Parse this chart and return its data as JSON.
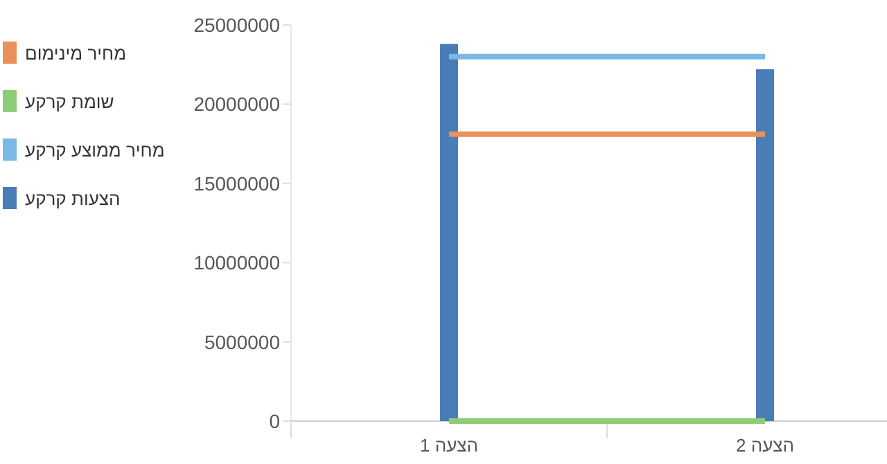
{
  "chart_data": {
    "type": "bar",
    "categories": [
      "הצעה 1",
      "הצעה 2"
    ],
    "series": [
      {
        "name": "מחיר מינימום",
        "type": "line",
        "color": "#e8915a",
        "values": [
          18100000,
          18100000
        ]
      },
      {
        "name": "שומת קרקע",
        "type": "line",
        "color": "#8dcd78",
        "values": [
          0,
          0
        ]
      },
      {
        "name": "מחיר ממוצע קרקע",
        "type": "line",
        "color": "#7ab8e6",
        "values": [
          23000000,
          23000000
        ]
      },
      {
        "name": "הצעות קרקע",
        "color": "#4a7db6",
        "values": [
          23800000,
          22200000
        ]
      }
    ],
    "ylim": [
      0,
      25000000
    ],
    "yticks": [
      0,
      5000000,
      10000000,
      15000000,
      20000000,
      25000000
    ],
    "grid": false,
    "legend": "left",
    "marker": "none"
  }
}
